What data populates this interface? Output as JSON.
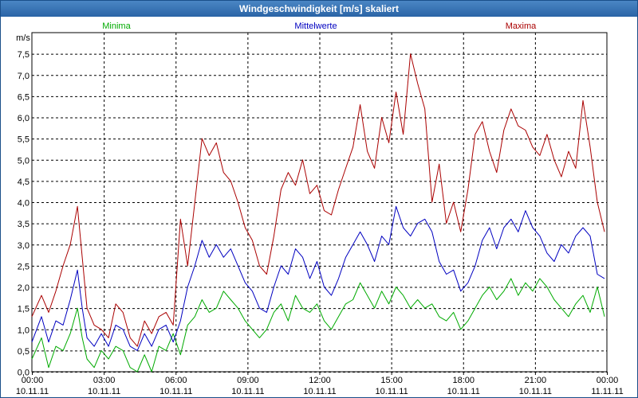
{
  "chart_data": {
    "type": "line",
    "title": "Windgeschwindigkeit [m/s] skaliert",
    "ylabel": "m/s",
    "ylim": [
      0,
      8
    ],
    "y_ticks": [
      "0,0",
      "0,5",
      "1,0",
      "1,5",
      "2,0",
      "2,5",
      "3,0",
      "3,5",
      "4,0",
      "4,5",
      "5,0",
      "5,5",
      "6,0",
      "6,5",
      "7,0",
      "7,5"
    ],
    "x_range_hours": [
      0,
      24
    ],
    "x_ticks": [
      {
        "time": "00:00",
        "date": "10.11.11"
      },
      {
        "time": "03:00",
        "date": "10.11.11"
      },
      {
        "time": "06:00",
        "date": "10.11.11"
      },
      {
        "time": "09:00",
        "date": "10.11.11"
      },
      {
        "time": "12:00",
        "date": "10.11.11"
      },
      {
        "time": "15:00",
        "date": "10.11.11"
      },
      {
        "time": "18:00",
        "date": "10.11.11"
      },
      {
        "time": "21:00",
        "date": "10.11.11"
      },
      {
        "time": "00:00",
        "date": "11.11.11"
      }
    ],
    "series": [
      {
        "name": "Minima",
        "color": "#00aa00",
        "x": [
          0,
          0.4,
          0.7,
          1.0,
          1.3,
          1.6,
          1.9,
          2.1,
          2.3,
          2.6,
          2.9,
          3.2,
          3.5,
          3.8,
          4.1,
          4.4,
          4.7,
          5.0,
          5.3,
          5.6,
          5.9,
          6.2,
          6.5,
          6.8,
          7.1,
          7.4,
          7.7,
          8.0,
          8.3,
          8.6,
          8.9,
          9.2,
          9.5,
          9.8,
          10.1,
          10.4,
          10.7,
          11.0,
          11.3,
          11.6,
          11.9,
          12.2,
          12.5,
          12.8,
          13.1,
          13.4,
          13.7,
          14.0,
          14.3,
          14.6,
          14.9,
          15.2,
          15.5,
          15.8,
          16.1,
          16.4,
          16.7,
          17.0,
          17.3,
          17.6,
          17.9,
          18.2,
          18.5,
          18.8,
          19.1,
          19.4,
          19.7,
          20.0,
          20.3,
          20.6,
          20.9,
          21.2,
          21.5,
          21.8,
          22.1,
          22.4,
          22.7,
          23.0,
          23.3,
          23.6,
          23.9
        ],
        "values": [
          0.3,
          0.8,
          0.1,
          0.6,
          0.5,
          0.9,
          1.5,
          0.8,
          0.3,
          0.1,
          0.5,
          0.3,
          0.6,
          0.5,
          0.1,
          0.0,
          0.4,
          0.0,
          0.6,
          0.5,
          0.9,
          0.4,
          1.1,
          1.3,
          1.7,
          1.4,
          1.5,
          1.9,
          1.7,
          1.5,
          1.2,
          1.0,
          0.8,
          1.0,
          1.4,
          1.6,
          1.2,
          1.8,
          1.5,
          1.4,
          1.6,
          1.2,
          1.0,
          1.3,
          1.6,
          1.7,
          2.1,
          1.8,
          1.5,
          1.9,
          1.6,
          2.0,
          1.8,
          1.5,
          1.7,
          1.5,
          1.6,
          1.3,
          1.2,
          1.4,
          1.0,
          1.2,
          1.5,
          1.8,
          2.0,
          1.7,
          1.9,
          2.2,
          1.8,
          2.1,
          1.9,
          2.2,
          2.0,
          1.7,
          1.5,
          1.3,
          1.6,
          1.8,
          1.4,
          2.0,
          1.3
        ]
      },
      {
        "name": "Mittelwerte",
        "color": "#0000c0",
        "x": [
          0,
          0.4,
          0.7,
          1.0,
          1.3,
          1.6,
          1.9,
          2.1,
          2.3,
          2.6,
          2.9,
          3.2,
          3.5,
          3.8,
          4.1,
          4.4,
          4.7,
          5.0,
          5.3,
          5.6,
          5.9,
          6.2,
          6.5,
          6.8,
          7.1,
          7.4,
          7.7,
          8.0,
          8.3,
          8.6,
          8.9,
          9.2,
          9.5,
          9.8,
          10.1,
          10.4,
          10.7,
          11.0,
          11.3,
          11.6,
          11.9,
          12.2,
          12.5,
          12.8,
          13.1,
          13.4,
          13.7,
          14.0,
          14.3,
          14.6,
          14.9,
          15.2,
          15.5,
          15.8,
          16.1,
          16.4,
          16.7,
          17.0,
          17.3,
          17.6,
          17.9,
          18.2,
          18.5,
          18.8,
          19.1,
          19.4,
          19.7,
          20.0,
          20.3,
          20.6,
          20.9,
          21.2,
          21.5,
          21.8,
          22.1,
          22.4,
          22.7,
          23.0,
          23.3,
          23.6,
          23.9
        ],
        "values": [
          0.7,
          1.3,
          0.7,
          1.2,
          1.1,
          1.7,
          2.4,
          1.5,
          0.8,
          0.6,
          0.9,
          0.6,
          1.1,
          1.0,
          0.6,
          0.5,
          0.9,
          0.6,
          1.0,
          1.1,
          0.7,
          1.2,
          2.0,
          2.5,
          3.1,
          2.7,
          3.0,
          2.7,
          2.9,
          2.5,
          2.1,
          1.9,
          1.5,
          1.4,
          2.0,
          2.5,
          2.3,
          2.9,
          2.7,
          2.2,
          2.6,
          2.0,
          1.8,
          2.2,
          2.7,
          3.0,
          3.3,
          3.0,
          2.6,
          3.2,
          3.0,
          3.9,
          3.4,
          3.2,
          3.5,
          3.6,
          3.3,
          2.6,
          2.3,
          2.4,
          1.9,
          2.1,
          2.5,
          3.1,
          3.4,
          2.9,
          3.4,
          3.6,
          3.3,
          3.8,
          3.4,
          3.2,
          2.8,
          2.6,
          3.0,
          2.8,
          3.2,
          3.4,
          3.2,
          2.3,
          2.2
        ]
      },
      {
        "name": "Maxima",
        "color": "#aa0000",
        "x": [
          0,
          0.4,
          0.7,
          1.0,
          1.3,
          1.6,
          1.9,
          2.1,
          2.3,
          2.6,
          2.9,
          3.2,
          3.5,
          3.8,
          4.1,
          4.4,
          4.7,
          5.0,
          5.3,
          5.6,
          5.9,
          6.2,
          6.5,
          6.8,
          7.1,
          7.4,
          7.7,
          8.0,
          8.3,
          8.6,
          8.9,
          9.2,
          9.5,
          9.8,
          10.1,
          10.4,
          10.7,
          11.0,
          11.3,
          11.6,
          11.9,
          12.2,
          12.5,
          12.8,
          13.1,
          13.4,
          13.7,
          14.0,
          14.3,
          14.6,
          14.9,
          15.2,
          15.5,
          15.8,
          16.1,
          16.4,
          16.7,
          17.0,
          17.3,
          17.6,
          17.9,
          18.2,
          18.5,
          18.8,
          19.1,
          19.4,
          19.7,
          20.0,
          20.3,
          20.6,
          20.9,
          21.2,
          21.5,
          21.8,
          22.1,
          22.4,
          22.7,
          23.0,
          23.3,
          23.6,
          23.9
        ],
        "values": [
          1.3,
          1.8,
          1.4,
          1.9,
          2.5,
          3.0,
          3.9,
          2.7,
          1.5,
          1.1,
          1.0,
          0.8,
          1.6,
          1.4,
          0.8,
          0.6,
          1.2,
          0.9,
          1.3,
          1.4,
          1.1,
          3.6,
          2.5,
          4.0,
          5.5,
          5.1,
          5.4,
          4.7,
          4.5,
          4.0,
          3.4,
          3.1,
          2.5,
          2.3,
          3.2,
          4.3,
          4.7,
          4.4,
          5.0,
          4.2,
          4.4,
          3.8,
          3.7,
          4.3,
          4.8,
          5.3,
          6.3,
          5.2,
          4.8,
          6.0,
          5.4,
          6.6,
          5.6,
          7.5,
          6.8,
          6.2,
          4.0,
          4.9,
          3.5,
          4.0,
          3.3,
          4.3,
          5.6,
          5.9,
          5.2,
          4.7,
          5.7,
          6.2,
          5.8,
          5.7,
          5.3,
          5.1,
          5.6,
          5.0,
          4.6,
          5.2,
          4.8,
          6.4,
          5.3,
          4.0,
          3.3
        ]
      }
    ]
  }
}
